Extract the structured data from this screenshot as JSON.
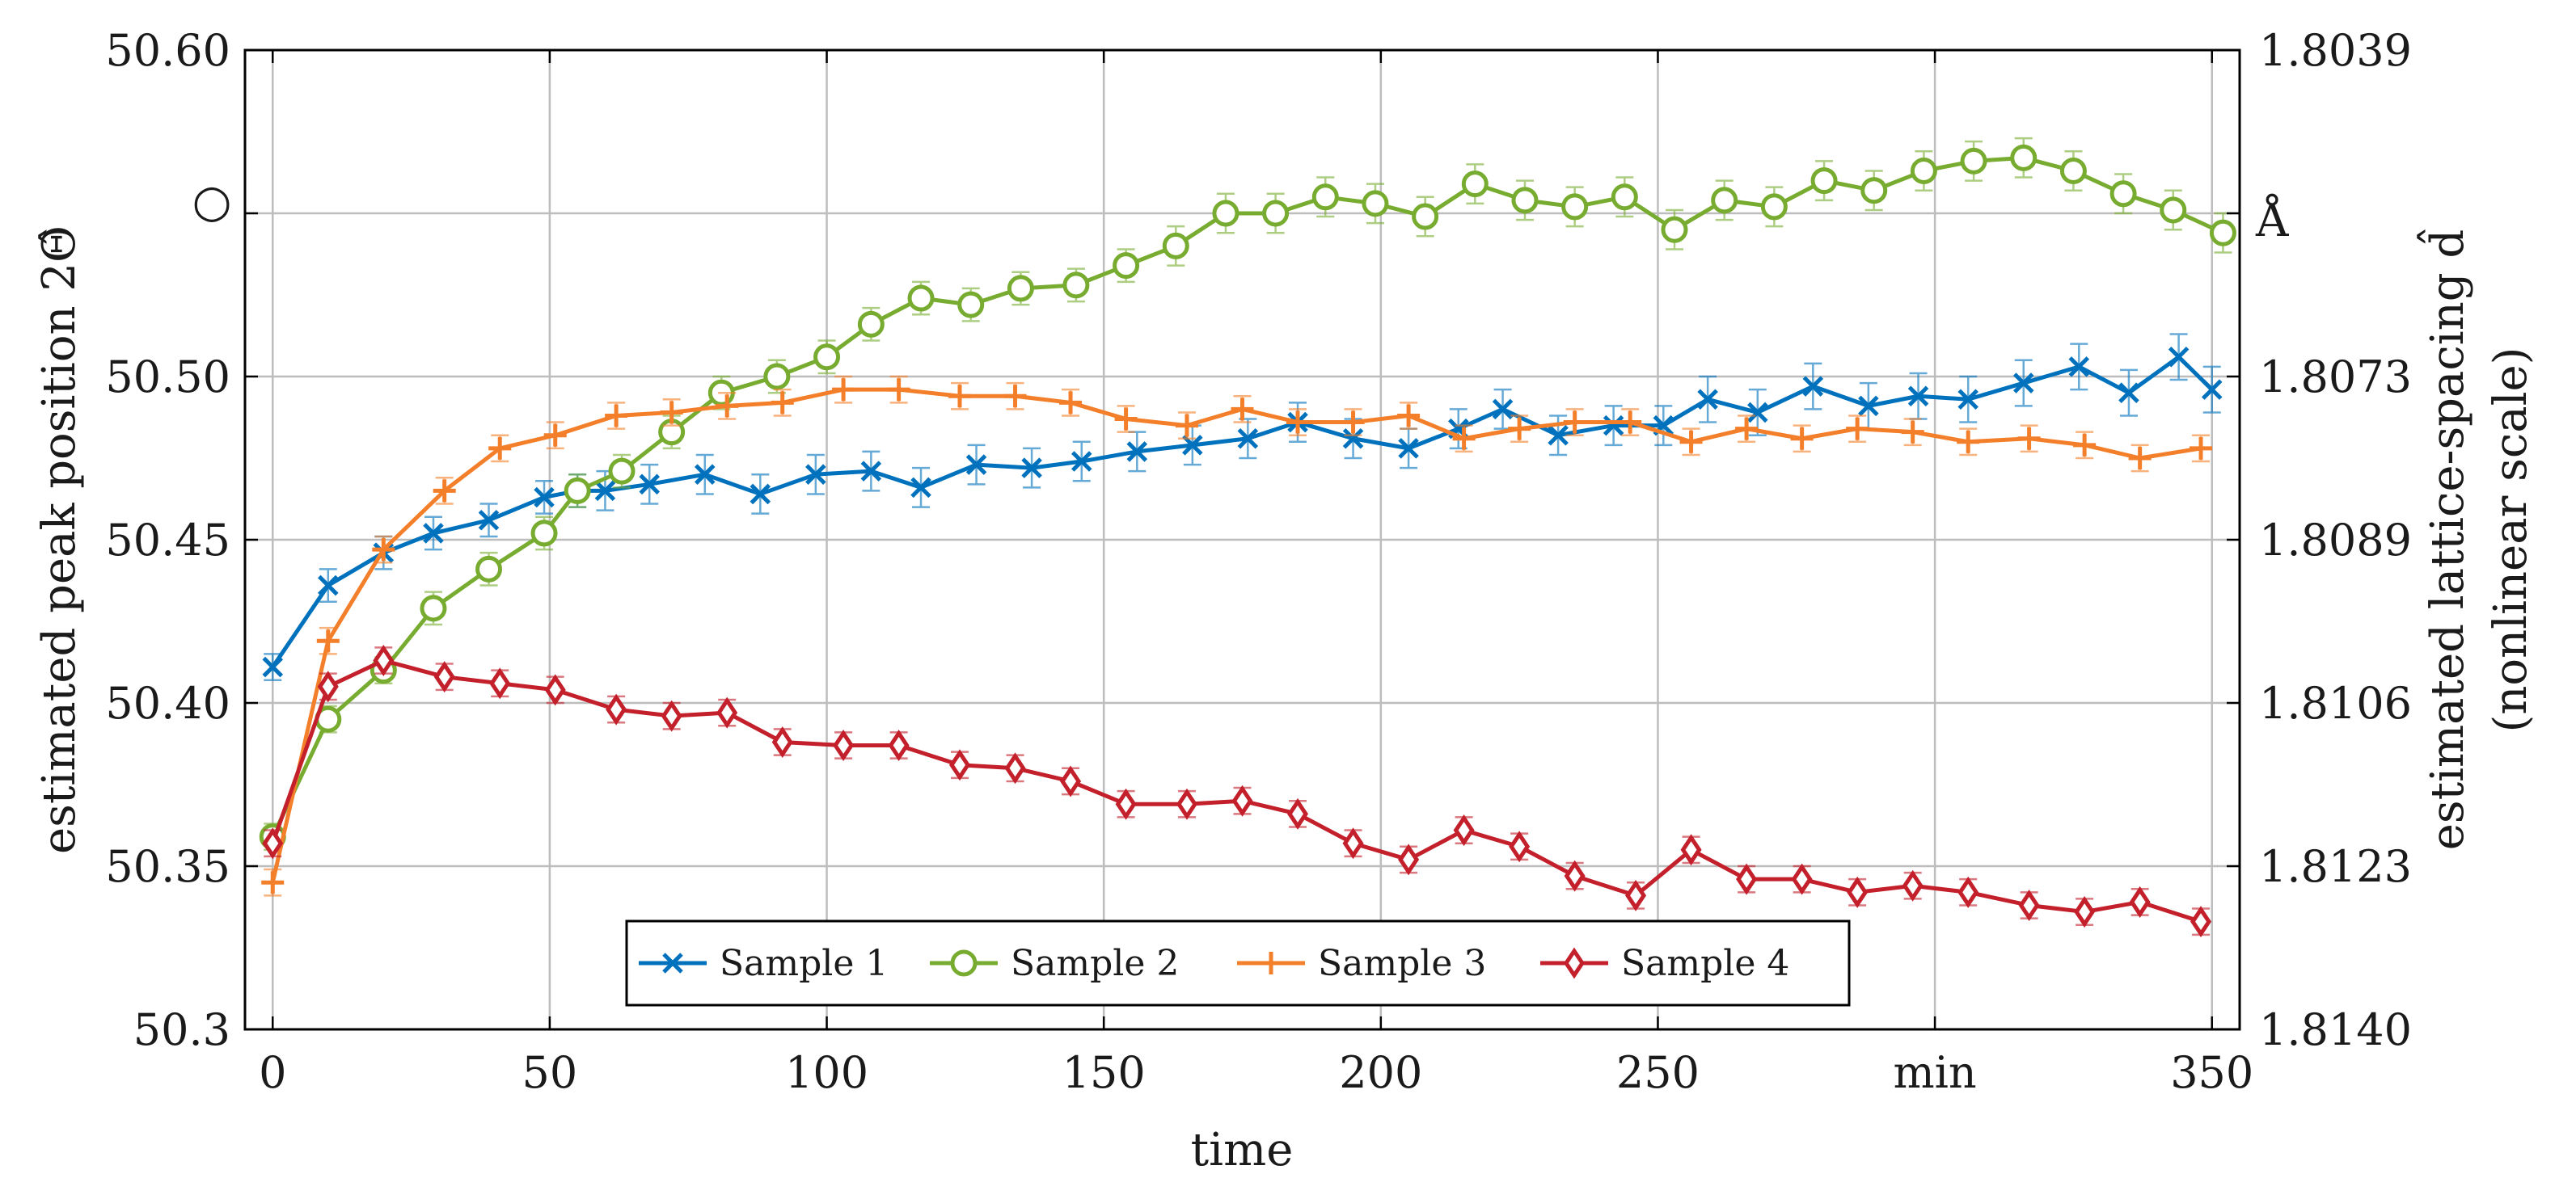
{
  "chart_data": {
    "type": "line",
    "xlabel": "time",
    "ylabel": "estimated peak position 2Θ̂",
    "ylabel_unit": "○",
    "y2label": "estimated lattice-spacing d̂",
    "y2label_note": "(nonlinear scale)",
    "y2label_unit": "Å",
    "x_unit_label": "min",
    "xlim": [
      -5,
      355
    ],
    "ylim": [
      50.3,
      50.6
    ],
    "x_ticks": [
      "0",
      "50",
      "100",
      "150",
      "200",
      "250",
      "min",
      "350"
    ],
    "x_tick_values": [
      0,
      50,
      100,
      150,
      200,
      250,
      300,
      350
    ],
    "y_ticks": [
      "50.3",
      "50.35",
      "50.40",
      "50.45",
      "50.50",
      "",
      "50.60"
    ],
    "y_tick_values": [
      50.3,
      50.35,
      50.4,
      50.45,
      50.5,
      50.55,
      50.6
    ],
    "y2_ticks": [
      "1.8140",
      "1.8123",
      "1.8106",
      "1.8089",
      "1.8073",
      "",
      "1.8039"
    ],
    "grid": true,
    "legend_position": "bottom-center",
    "series": [
      {
        "name": "Sample 1",
        "color": "#0072bd",
        "marker": "x",
        "points": [
          [
            0,
            50.411,
            0.004
          ],
          [
            10,
            50.436,
            0.005
          ],
          [
            20,
            50.446,
            0.005
          ],
          [
            29,
            50.452,
            0.005
          ],
          [
            39,
            50.456,
            0.005
          ],
          [
            49,
            50.463,
            0.005
          ],
          [
            55,
            50.465,
            0.005
          ],
          [
            60,
            50.465,
            0.006
          ],
          [
            68,
            50.467,
            0.006
          ],
          [
            78,
            50.47,
            0.006
          ],
          [
            88,
            50.464,
            0.006
          ],
          [
            98,
            50.47,
            0.006
          ],
          [
            108,
            50.471,
            0.006
          ],
          [
            117,
            50.466,
            0.006
          ],
          [
            127,
            50.473,
            0.006
          ],
          [
            137,
            50.472,
            0.006
          ],
          [
            146,
            50.474,
            0.006
          ],
          [
            156,
            50.477,
            0.006
          ],
          [
            166,
            50.479,
            0.006
          ],
          [
            176,
            50.481,
            0.006
          ],
          [
            185,
            50.486,
            0.006
          ],
          [
            195,
            50.481,
            0.006
          ],
          [
            205,
            50.478,
            0.006
          ],
          [
            214,
            50.484,
            0.006
          ],
          [
            222,
            50.49,
            0.006
          ],
          [
            232,
            50.482,
            0.006
          ],
          [
            242,
            50.485,
            0.006
          ],
          [
            251,
            50.485,
            0.006
          ],
          [
            259,
            50.493,
            0.007
          ],
          [
            268,
            50.489,
            0.007
          ],
          [
            278,
            50.497,
            0.007
          ],
          [
            288,
            50.491,
            0.007
          ],
          [
            297,
            50.494,
            0.007
          ],
          [
            306,
            50.493,
            0.007
          ],
          [
            316,
            50.498,
            0.007
          ],
          [
            326,
            50.503,
            0.007
          ],
          [
            335,
            50.495,
            0.007
          ],
          [
            344,
            50.506,
            0.007
          ],
          [
            350,
            50.496,
            0.007
          ]
        ]
      },
      {
        "name": "Sample 2",
        "color": "#77ac30",
        "marker": "o",
        "points": [
          [
            0,
            50.359,
            0.004
          ],
          [
            10,
            50.395,
            0.004
          ],
          [
            20,
            50.41,
            0.004
          ],
          [
            29,
            50.429,
            0.005
          ],
          [
            39,
            50.441,
            0.005
          ],
          [
            49,
            50.452,
            0.005
          ],
          [
            55,
            50.465,
            0.005
          ],
          [
            63,
            50.471,
            0.005
          ],
          [
            72,
            50.483,
            0.005
          ],
          [
            81,
            50.495,
            0.005
          ],
          [
            91,
            50.5,
            0.005
          ],
          [
            100,
            50.506,
            0.005
          ],
          [
            108,
            50.516,
            0.005
          ],
          [
            117,
            50.524,
            0.005
          ],
          [
            126,
            50.522,
            0.005
          ],
          [
            135,
            50.527,
            0.005
          ],
          [
            145,
            50.528,
            0.005
          ],
          [
            154,
            50.534,
            0.005
          ],
          [
            163,
            50.54,
            0.006
          ],
          [
            172,
            50.55,
            0.006
          ],
          [
            181,
            50.55,
            0.006
          ],
          [
            190,
            50.555,
            0.006
          ],
          [
            199,
            50.553,
            0.006
          ],
          [
            208,
            50.549,
            0.006
          ],
          [
            217,
            50.559,
            0.006
          ],
          [
            226,
            50.554,
            0.006
          ],
          [
            235,
            50.552,
            0.006
          ],
          [
            244,
            50.555,
            0.006
          ],
          [
            253,
            50.545,
            0.006
          ],
          [
            262,
            50.554,
            0.006
          ],
          [
            271,
            50.552,
            0.006
          ],
          [
            280,
            50.56,
            0.006
          ],
          [
            289,
            50.557,
            0.006
          ],
          [
            298,
            50.563,
            0.006
          ],
          [
            307,
            50.566,
            0.006
          ],
          [
            316,
            50.567,
            0.006
          ],
          [
            325,
            50.563,
            0.006
          ],
          [
            334,
            50.556,
            0.006
          ],
          [
            343,
            50.551,
            0.006
          ],
          [
            352,
            50.544,
            0.006
          ]
        ]
      },
      {
        "name": "Sample 3",
        "color": "#f47f2a",
        "marker": "+",
        "points": [
          [
            0,
            50.345,
            0.004
          ],
          [
            10,
            50.419,
            0.004
          ],
          [
            20,
            50.447,
            0.004
          ],
          [
            31,
            50.465,
            0.004
          ],
          [
            41,
            50.478,
            0.004
          ],
          [
            51,
            50.482,
            0.004
          ],
          [
            62,
            50.488,
            0.004
          ],
          [
            72,
            50.489,
            0.004
          ],
          [
            82,
            50.491,
            0.004
          ],
          [
            92,
            50.492,
            0.004
          ],
          [
            103,
            50.496,
            0.004
          ],
          [
            113,
            50.496,
            0.004
          ],
          [
            124,
            50.494,
            0.004
          ],
          [
            134,
            50.494,
            0.004
          ],
          [
            144,
            50.492,
            0.004
          ],
          [
            154,
            50.487,
            0.004
          ],
          [
            165,
            50.485,
            0.004
          ],
          [
            175,
            50.49,
            0.004
          ],
          [
            185,
            50.486,
            0.004
          ],
          [
            195,
            50.486,
            0.004
          ],
          [
            205,
            50.488,
            0.004
          ],
          [
            215,
            50.481,
            0.004
          ],
          [
            225,
            50.484,
            0.004
          ],
          [
            235,
            50.486,
            0.004
          ],
          [
            245,
            50.486,
            0.004
          ],
          [
            256,
            50.48,
            0.004
          ],
          [
            266,
            50.484,
            0.004
          ],
          [
            276,
            50.481,
            0.004
          ],
          [
            286,
            50.484,
            0.004
          ],
          [
            296,
            50.483,
            0.004
          ],
          [
            306,
            50.48,
            0.004
          ],
          [
            317,
            50.481,
            0.004
          ],
          [
            327,
            50.479,
            0.004
          ],
          [
            337,
            50.475,
            0.004
          ],
          [
            348,
            50.478,
            0.004
          ]
        ]
      },
      {
        "name": "Sample 4",
        "color": "#c3202b",
        "marker": "d",
        "points": [
          [
            0,
            50.357,
            0.004
          ],
          [
            10,
            50.405,
            0.004
          ],
          [
            20,
            50.413,
            0.004
          ],
          [
            31,
            50.408,
            0.004
          ],
          [
            41,
            50.406,
            0.004
          ],
          [
            51,
            50.404,
            0.004
          ],
          [
            62,
            50.398,
            0.004
          ],
          [
            72,
            50.396,
            0.004
          ],
          [
            82,
            50.397,
            0.004
          ],
          [
            92,
            50.388,
            0.004
          ],
          [
            103,
            50.387,
            0.004
          ],
          [
            113,
            50.387,
            0.004
          ],
          [
            124,
            50.381,
            0.004
          ],
          [
            134,
            50.38,
            0.004
          ],
          [
            144,
            50.376,
            0.004
          ],
          [
            154,
            50.369,
            0.004
          ],
          [
            165,
            50.369,
            0.004
          ],
          [
            175,
            50.37,
            0.004
          ],
          [
            185,
            50.366,
            0.004
          ],
          [
            195,
            50.357,
            0.004
          ],
          [
            205,
            50.352,
            0.004
          ],
          [
            215,
            50.361,
            0.004
          ],
          [
            225,
            50.356,
            0.004
          ],
          [
            235,
            50.347,
            0.004
          ],
          [
            246,
            50.341,
            0.004
          ],
          [
            256,
            50.355,
            0.004
          ],
          [
            266,
            50.346,
            0.004
          ],
          [
            276,
            50.346,
            0.004
          ],
          [
            286,
            50.342,
            0.004
          ],
          [
            296,
            50.344,
            0.004
          ],
          [
            306,
            50.342,
            0.004
          ],
          [
            317,
            50.338,
            0.004
          ],
          [
            327,
            50.336,
            0.004
          ],
          [
            337,
            50.339,
            0.004
          ],
          [
            348,
            50.333,
            0.004
          ]
        ]
      }
    ]
  }
}
